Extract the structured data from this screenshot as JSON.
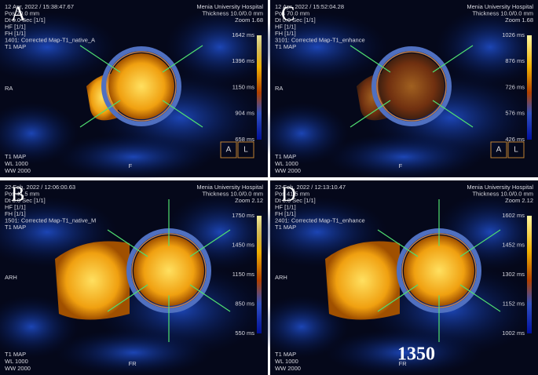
{
  "panels": [
    {
      "label": "A",
      "datetime": "12 Apr, 2022 / 15:38:47.67",
      "pos": "Pos 70.0 mm",
      "dt": "Dt 0.0 Sec [1/1]",
      "hf": "HF [1/1]",
      "fh": "FH [1/1]",
      "series": "1401: Corrected Map-T1_native_A",
      "map": "T1 MAP",
      "hospital": "Menia University Hospital",
      "thickness": "Thickness 10.0/0.0 mm",
      "zoom": "Zoom 1.68",
      "scale": [
        "1642 ms",
        "1396 ms",
        "1150 ms",
        "904 ms",
        "658 ms"
      ],
      "side": "RA",
      "foot": "F",
      "bottom": [
        "T1 MAP",
        "WL  1000",
        "WW  2000"
      ],
      "boxes": [
        "A",
        "L"
      ]
    },
    {
      "label": "C",
      "datetime": "12 Apr, 2022 / 15:52:04.28",
      "pos": "Pos 70.0 mm",
      "dt": "Dt 0.0 Sec [1/1]",
      "hf": "HF [1/1]",
      "fh": "FH [1/1]",
      "series": "3101: Corrected Map-T1_enhance",
      "map": "T1 MAP",
      "hospital": "Menia University Hospital",
      "thickness": "Thickness 10.0/0.0 mm",
      "zoom": "Zoom 1.68",
      "scale": [
        "1026 ms",
        "876 ms",
        "726 ms",
        "576 ms",
        "426 ms"
      ],
      "side": "RA",
      "foot": "F",
      "bottom": [
        "T1 MAP",
        "WL  1000",
        "WW  2000"
      ],
      "boxes": [
        "A",
        "L"
      ]
    },
    {
      "label": "B",
      "datetime": "22 Feb, 2022 / 12:06:00.63",
      "pos": "Pos 41.5 mm",
      "dt": "Dt 0.0 Sec [1/1]",
      "hf": "HF [1/1]",
      "fh": "FH [1/1]",
      "series": "1501: Corrected Map-T1_native_M",
      "map": "T1 MAP",
      "hospital": "Menia University Hospital",
      "thickness": "Thickness 10.0/0.0 mm",
      "zoom": "Zoom 2.12",
      "scale": [
        "1750 ms",
        "1450 ms",
        "1150 ms",
        "850 ms",
        "550 ms"
      ],
      "side": "ARH",
      "foot": "FR",
      "bottom": [
        "T1 MAP",
        "WL  1000",
        "WW  2000"
      ],
      "boxes": []
    },
    {
      "label": "D",
      "datetime": "22 Feb, 2022 / 12:13:10.47",
      "pos": "Pos 41.5 mm",
      "dt": "Dt 0.0 Sec [1/1]",
      "hf": "HF [1/1]",
      "fh": "FH [1/1]",
      "series": "2401: Corrected Map-T1_enhance",
      "map": "T1 MAP",
      "hospital": "Menia University Hospital",
      "thickness": "Thickness 10.0/0.0 mm",
      "zoom": "Zoom 2.12",
      "scale": [
        "1602 ms",
        "1452 ms",
        "1302 ms",
        "1152 ms",
        "1002 ms"
      ],
      "side": "ARH",
      "foot": "FR",
      "bottom": [
        "T1 MAP",
        "WL  1000",
        "WW  2000"
      ],
      "boxes": [],
      "big": "1350"
    }
  ]
}
